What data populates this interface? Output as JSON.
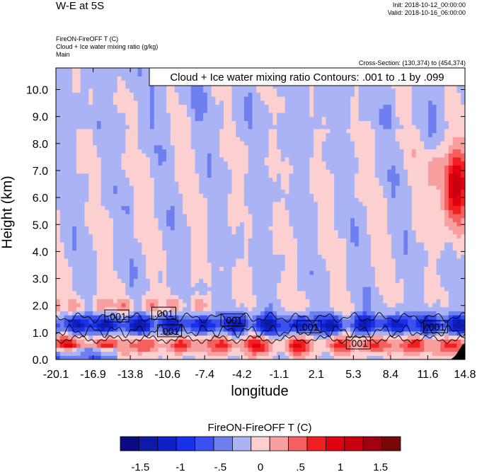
{
  "header": {
    "title": "W-E at 5S",
    "init": "Init: 2018-10-12_00:00:00",
    "valid": "Valid: 2018-10-16_06:00:00",
    "field_line1": "FireON-FireOFF T   (C)",
    "field_line2": "Cloud + Ice water mixing ratio   (g/kg)",
    "field_line3": "Main",
    "cross_section": "Cross-Section: (130,374) to (454,374)"
  },
  "chart_data": {
    "type": "heatmap",
    "title": "",
    "xlabel": "longitude",
    "ylabel": "Height (km)",
    "xlim": [
      -20.1,
      14.8
    ],
    "ylim": [
      0.0,
      10.8
    ],
    "x_ticks": [
      "-20.1",
      "-16.9",
      "-13.8",
      "-10.6",
      "-7.4",
      "-4.2",
      "-1.1",
      "2.1",
      "5.3",
      "8.4",
      "11.6",
      "14.8"
    ],
    "y_ticks": [
      "0.0",
      "1.0",
      "2.0",
      "3.0",
      "4.0",
      "5.0",
      "6.0",
      "7.0",
      "8.0",
      "9.0",
      "10.0"
    ],
    "y_tick_values": [
      0,
      1,
      2,
      3,
      4,
      5,
      6,
      7,
      8,
      9,
      10
    ],
    "contour_info": "Cloud + Ice water mixing ratio Contours: .001 to .1 by .099",
    "contour_labels": [
      {
        "text": ".001",
        "lon": -14.9,
        "h": 1.6
      },
      {
        "text": ".001",
        "lon": -10.9,
        "h": 1.7
      },
      {
        "text": ".001",
        "lon": -10.4,
        "h": 1.05
      },
      {
        "text": ".001",
        "lon": -5.0,
        "h": 1.45
      },
      {
        "text": ".001",
        "lon": 1.5,
        "h": 1.2
      },
      {
        "text": ".001",
        "lon": 5.7,
        "h": 0.6
      },
      {
        "text": ".001",
        "lon": 12.3,
        "h": 1.2
      }
    ],
    "colorbar": {
      "title": "FireON-FireOFF T  (C)",
      "colors": [
        "#0a0a82",
        "#0d1aa8",
        "#1020c8",
        "#1830e8",
        "#3c50f0",
        "#6e80f0",
        "#aab4f4",
        "#fcd0d0",
        "#f8a0a0",
        "#f46060",
        "#f02020",
        "#e00010",
        "#c80010",
        "#a00010",
        "#780808"
      ],
      "tick_labels": [
        "-1.5",
        "-1",
        "-.5",
        "0",
        ".5",
        "1",
        "1.5"
      ],
      "tick_values": [
        -1.5,
        -1.0,
        -0.5,
        0,
        0.5,
        1.0,
        1.5
      ],
      "range": [
        -1.75,
        1.75
      ]
    }
  }
}
